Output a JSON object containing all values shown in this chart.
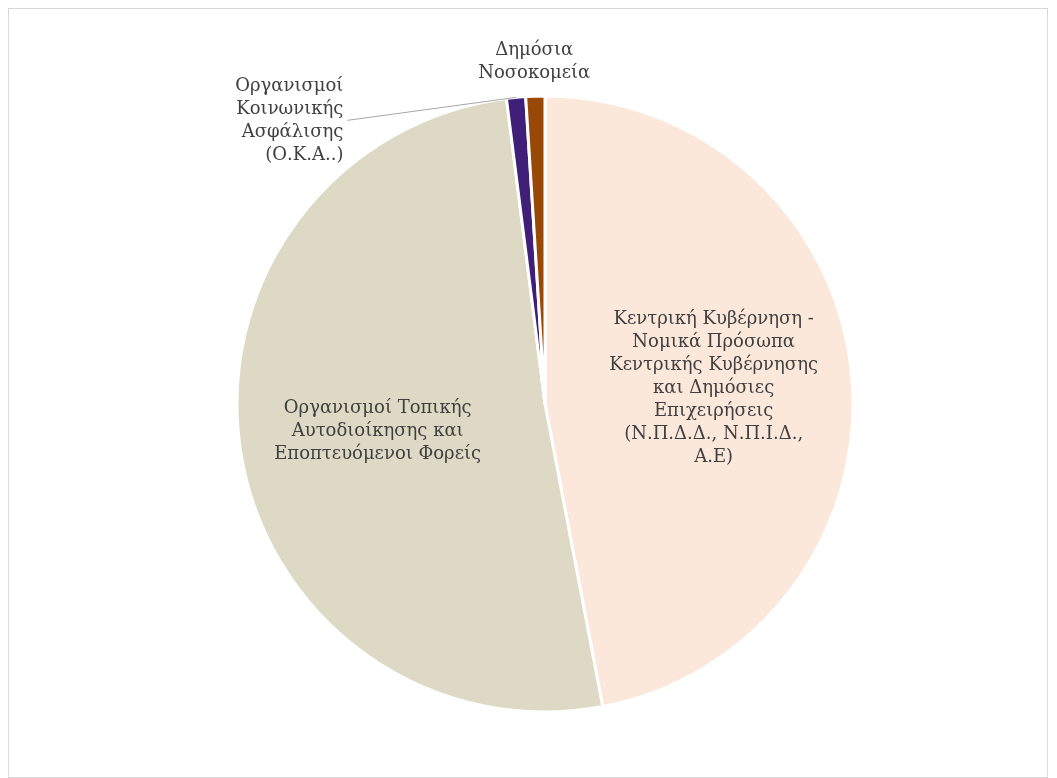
{
  "chart_data": {
    "type": "pie",
    "categories": [
      "Κεντρική Κυβέρνηση - Νομικά Πρόσωπα Κεντρικής Κυβέρνησης και Δημόσιες Επιχειρήσεις (Ν.Π.Δ.Δ., Ν.Π.Ι.Δ., Α.Ε)",
      "Οργανισμοί Τοπικής Αυτοδιοίκησης και Εποπτευόμενοι Φορείς",
      "Οργανισμοί Κοινωνικής Ασφάλισης (Ο.Κ.Α..)",
      "Δημόσια Νοσοκομεία"
    ],
    "values": [
      47,
      51,
      1,
      1
    ],
    "colors": [
      "#fce8da",
      "#ddd9c4",
      "#3f1f78",
      "#984807"
    ],
    "legend": false
  }
}
